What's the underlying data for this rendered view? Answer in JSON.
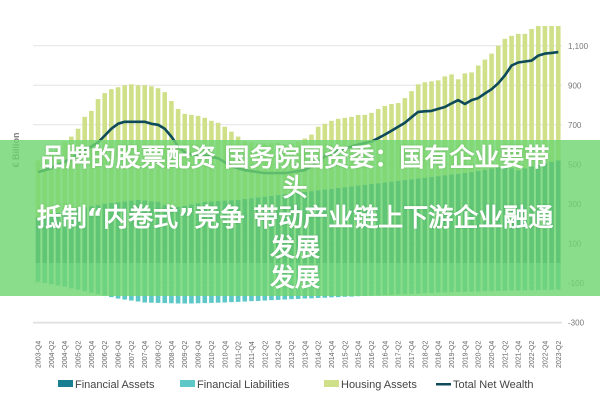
{
  "chart_data": {
    "type": "bar",
    "stacked": true,
    "ylabel": "€ Billion",
    "ylim": [
      -300,
      1200
    ],
    "yticks": [
      1100,
      900,
      700,
      500,
      300,
      100,
      -100,
      -300
    ],
    "ytick_labels": [
      "1,100",
      "900",
      "700",
      "500",
      "300",
      "100",
      "-100",
      "-300"
    ],
    "grid": true,
    "y_axis_side": "right",
    "legend_placement": "bottom",
    "categories": [
      "2003-Q4",
      "2004-Q1",
      "2004-Q2",
      "2004-Q3",
      "2004-Q4",
      "2005-Q1",
      "2005-Q2",
      "2005-Q3",
      "2005-Q4",
      "2006-Q1",
      "2006-Q2",
      "2006-Q3",
      "2006-Q4",
      "2007-Q1",
      "2007-Q2",
      "2007-Q3",
      "2007-Q4",
      "2008-Q1",
      "2008-Q2",
      "2008-Q3",
      "2008-Q4",
      "2009-Q1",
      "2009-Q2",
      "2009-Q3",
      "2009-Q4",
      "2010-Q1",
      "2010-Q2",
      "2010-Q3",
      "2010-Q4",
      "2011-Q1",
      "2011-Q2",
      "2011-Q3",
      "2011-Q4",
      "2012-Q1",
      "2012-Q2",
      "2012-Q3",
      "2012-Q4",
      "2013-Q1",
      "2013-Q2",
      "2013-Q3",
      "2013-Q4",
      "2014-Q1",
      "2014-Q2",
      "2014-Q3",
      "2014-Q4",
      "2015-Q1",
      "2015-Q2",
      "2015-Q3",
      "2015-Q4",
      "2016-Q1",
      "2016-Q2",
      "2016-Q3",
      "2016-Q4",
      "2017-Q1",
      "2017-Q2",
      "2017-Q3",
      "2017-Q4",
      "2018-Q1",
      "2018-Q2",
      "2018-Q3",
      "2018-Q4",
      "2019-Q1",
      "2019-Q2",
      "2019-Q3",
      "2019-Q4",
      "2020-Q1",
      "2020-Q2",
      "2020-Q3",
      "2020-Q4",
      "2021-Q1",
      "2021-Q2",
      "2021-Q3",
      "2021-Q4",
      "2022-Q1",
      "2022-Q2",
      "2022-Q3",
      "2022-Q4",
      "2023-Q1",
      "2023-Q2"
    ],
    "series": [
      {
        "name": "Financial Assets",
        "kind": "bar",
        "color": "#1a7f91",
        "values": [
          230,
          238,
          246,
          254,
          262,
          270,
          276,
          282,
          288,
          294,
          300,
          304,
          308,
          312,
          316,
          320,
          317,
          313,
          310,
          295,
          280,
          285,
          290,
          297,
          303,
          310,
          312,
          314,
          316,
          318,
          320,
          324,
          328,
          332,
          336,
          340,
          344,
          348,
          352,
          356,
          360,
          364,
          368,
          372,
          376,
          380,
          384,
          388,
          392,
          396,
          400,
          404,
          408,
          412,
          416,
          420,
          424,
          428,
          432,
          436,
          440,
          444,
          448,
          452,
          456,
          460,
          466,
          472,
          478,
          484,
          490,
          480,
          470,
          480,
          490,
          500,
          507,
          513,
          520
        ]
      },
      {
        "name": "Financial Liabilities",
        "kind": "bar",
        "color": "#5ec8c9",
        "values": [
          -95,
          -101,
          -108,
          -114,
          -120,
          -128,
          -135,
          -143,
          -150,
          -158,
          -165,
          -173,
          -180,
          -185,
          -190,
          -195,
          -200,
          -201,
          -202,
          -203,
          -204,
          -205,
          -205,
          -205,
          -204,
          -203,
          -202,
          -201,
          -200,
          -198,
          -197,
          -195,
          -193,
          -192,
          -190,
          -188,
          -187,
          -185,
          -183,
          -182,
          -180,
          -179,
          -177,
          -176,
          -174,
          -173,
          -171,
          -170,
          -168,
          -167,
          -165,
          -164,
          -162,
          -161,
          -159,
          -158,
          -156,
          -155,
          -153,
          -152,
          -150,
          -149,
          -148,
          -147,
          -146,
          -145,
          -144,
          -143,
          -142,
          -141,
          -140,
          -139,
          -139,
          -138,
          -138,
          -137,
          -136,
          -136,
          -135
        ]
      },
      {
        "name": "Housing Assets",
        "kind": "bar",
        "color": "#cfe089",
        "values": [
          290,
          292,
          314,
          336,
          353,
          370,
          404,
          458,
          482,
          536,
          560,
          576,
          582,
          588,
          589,
          580,
          583,
          582,
          575,
          570,
          540,
          495,
          465,
          453,
          442,
          425,
          408,
          396,
          374,
          347,
          320,
          291,
          282,
          273,
          269,
          268,
          266,
          252,
          253,
          259,
          270,
          286,
          322,
          333,
          344,
          350,
          351,
          352,
          358,
          354,
          360,
          376,
          387,
          393,
          394,
          415,
          446,
          477,
          483,
          484,
          485,
          501,
          507,
          478,
          504,
          505,
          534,
          558,
          582,
          616,
          645,
          670,
          690,
          680,
          695,
          700,
          693,
          687,
          680
        ]
      },
      {
        "name": "Total Net Wealth",
        "kind": "line",
        "color": "#0e4a5a",
        "values": [
          460,
          470,
          480,
          497,
          513,
          530,
          550,
          570,
          590,
          610,
          645,
          680,
          705,
          715,
          715,
          715,
          715,
          705,
          700,
          680,
          640,
          590,
          560,
          550,
          548,
          545,
          538,
          530,
          510,
          490,
          480,
          470,
          465,
          460,
          455,
          455,
          455,
          455,
          460,
          465,
          470,
          490,
          510,
          540,
          555,
          570,
          580,
          590,
          600,
          608,
          615,
          632,
          650,
          670,
          690,
          710,
          738,
          765,
          768,
          770,
          780,
          790,
          808,
          825,
          805,
          825,
          835,
          858,
          880,
          910,
          950,
          1000,
          1015,
          1020,
          1025,
          1050,
          1060,
          1064,
          1068
        ]
      }
    ]
  },
  "overlay": {
    "color": "#70d670",
    "lines": [
      "品牌的股票配资 国务院国资委：国有企业要带头",
      "抵制“内卷式”竞争 带动产业链上下游企业融通发展",
      "发展"
    ]
  }
}
